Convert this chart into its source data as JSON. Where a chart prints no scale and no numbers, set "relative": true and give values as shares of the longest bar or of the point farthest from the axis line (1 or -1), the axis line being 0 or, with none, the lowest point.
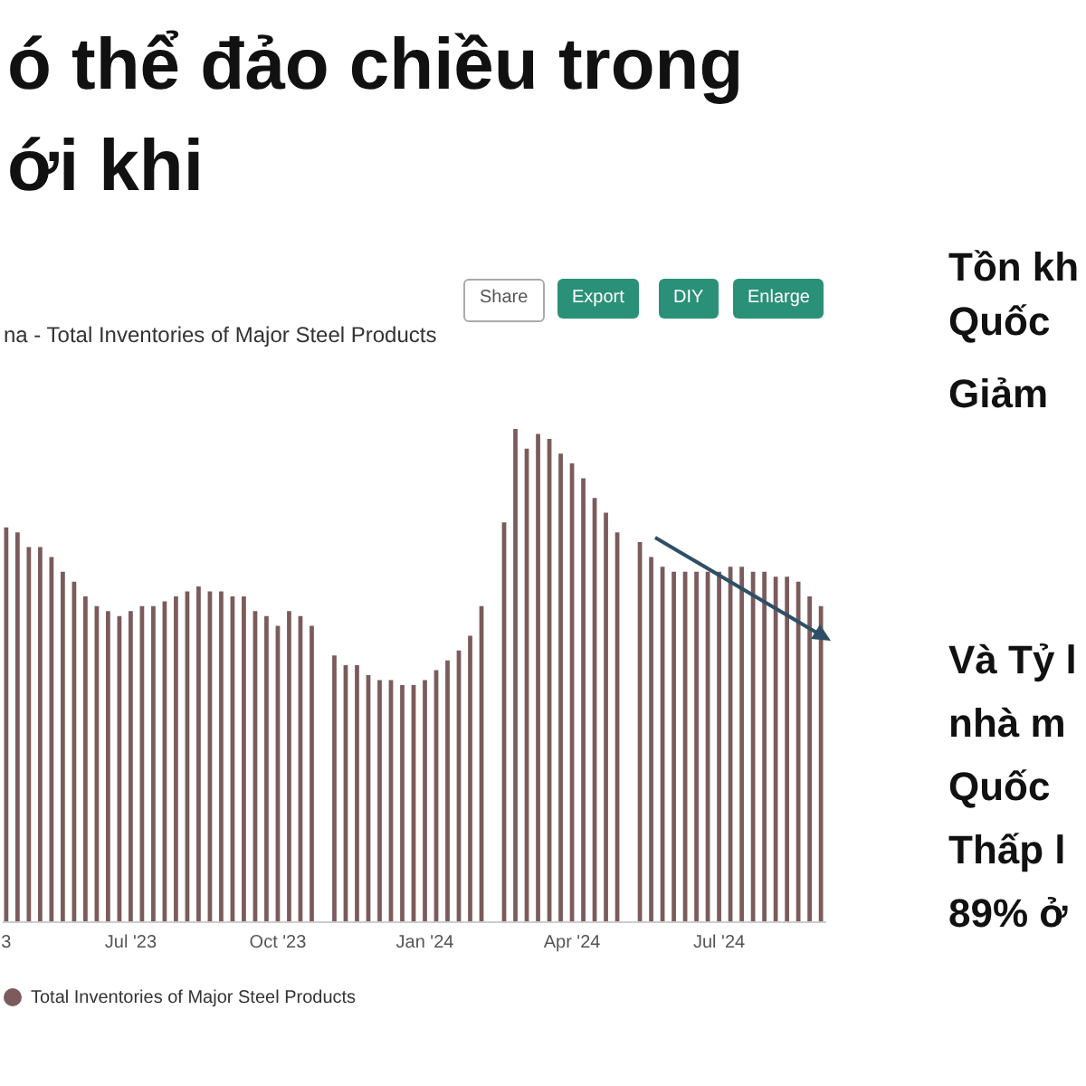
{
  "chart_data": {
    "type": "bar",
    "title": "ó thể đảo chiều trong\nới khi",
    "subtitle": "na - Total Inventories of Major Steel Products",
    "relative": true,
    "legend": "bottom",
    "annotations": [
      "Share",
      "Export",
      "DIY",
      "Enlarge",
      "Tồn kh",
      "Quốc",
      "Giảm",
      "Và Tỷ l",
      "nhà m",
      "Quốc",
      "Thấp l",
      "89% ở"
    ],
    "categories": [
      "3",
      null,
      null,
      null,
      null,
      null,
      null,
      null,
      null,
      null,
      null,
      "Jul '23",
      null,
      null,
      null,
      null,
      null,
      null,
      null,
      null,
      null,
      null,
      null,
      null,
      "Oct '23",
      null,
      null,
      null,
      null,
      null,
      null,
      null,
      null,
      null,
      null,
      null,
      null,
      "Jan '24",
      null,
      null,
      null,
      null,
      null,
      null,
      null,
      null,
      null,
      null,
      null,
      null,
      "Apr '24",
      null,
      null,
      null,
      null,
      null,
      null,
      null,
      null,
      null,
      null,
      null,
      null,
      "Jul '24",
      null,
      null,
      null,
      null,
      null,
      null,
      null,
      null,
      null
    ],
    "series": [
      {
        "name": "Total Inventories of Major Steel Products",
        "color": "#7b5b5b",
        "values": [
          0.8,
          0.79,
          0.76,
          0.76,
          0.74,
          0.71,
          0.69,
          0.66,
          0.64,
          0.63,
          0.62,
          0.63,
          0.64,
          0.64,
          0.65,
          0.66,
          0.67,
          0.68,
          0.67,
          0.67,
          0.66,
          0.66,
          0.63,
          0.62,
          0.6,
          0.63,
          0.62,
          0.6,
          null,
          0.54,
          0.52,
          0.52,
          0.5,
          0.49,
          0.49,
          0.48,
          0.48,
          0.49,
          0.51,
          0.53,
          0.55,
          0.58,
          0.64,
          null,
          0.81,
          1.0,
          0.96,
          0.99,
          0.98,
          0.95,
          0.93,
          0.9,
          0.86,
          0.83,
          0.79,
          null,
          0.77,
          0.74,
          0.72,
          0.71,
          0.71,
          0.71,
          0.71,
          0.71,
          0.72,
          0.72,
          0.71,
          0.71,
          0.7,
          0.7,
          0.69,
          0.66,
          0.64
        ]
      }
    ]
  }
}
